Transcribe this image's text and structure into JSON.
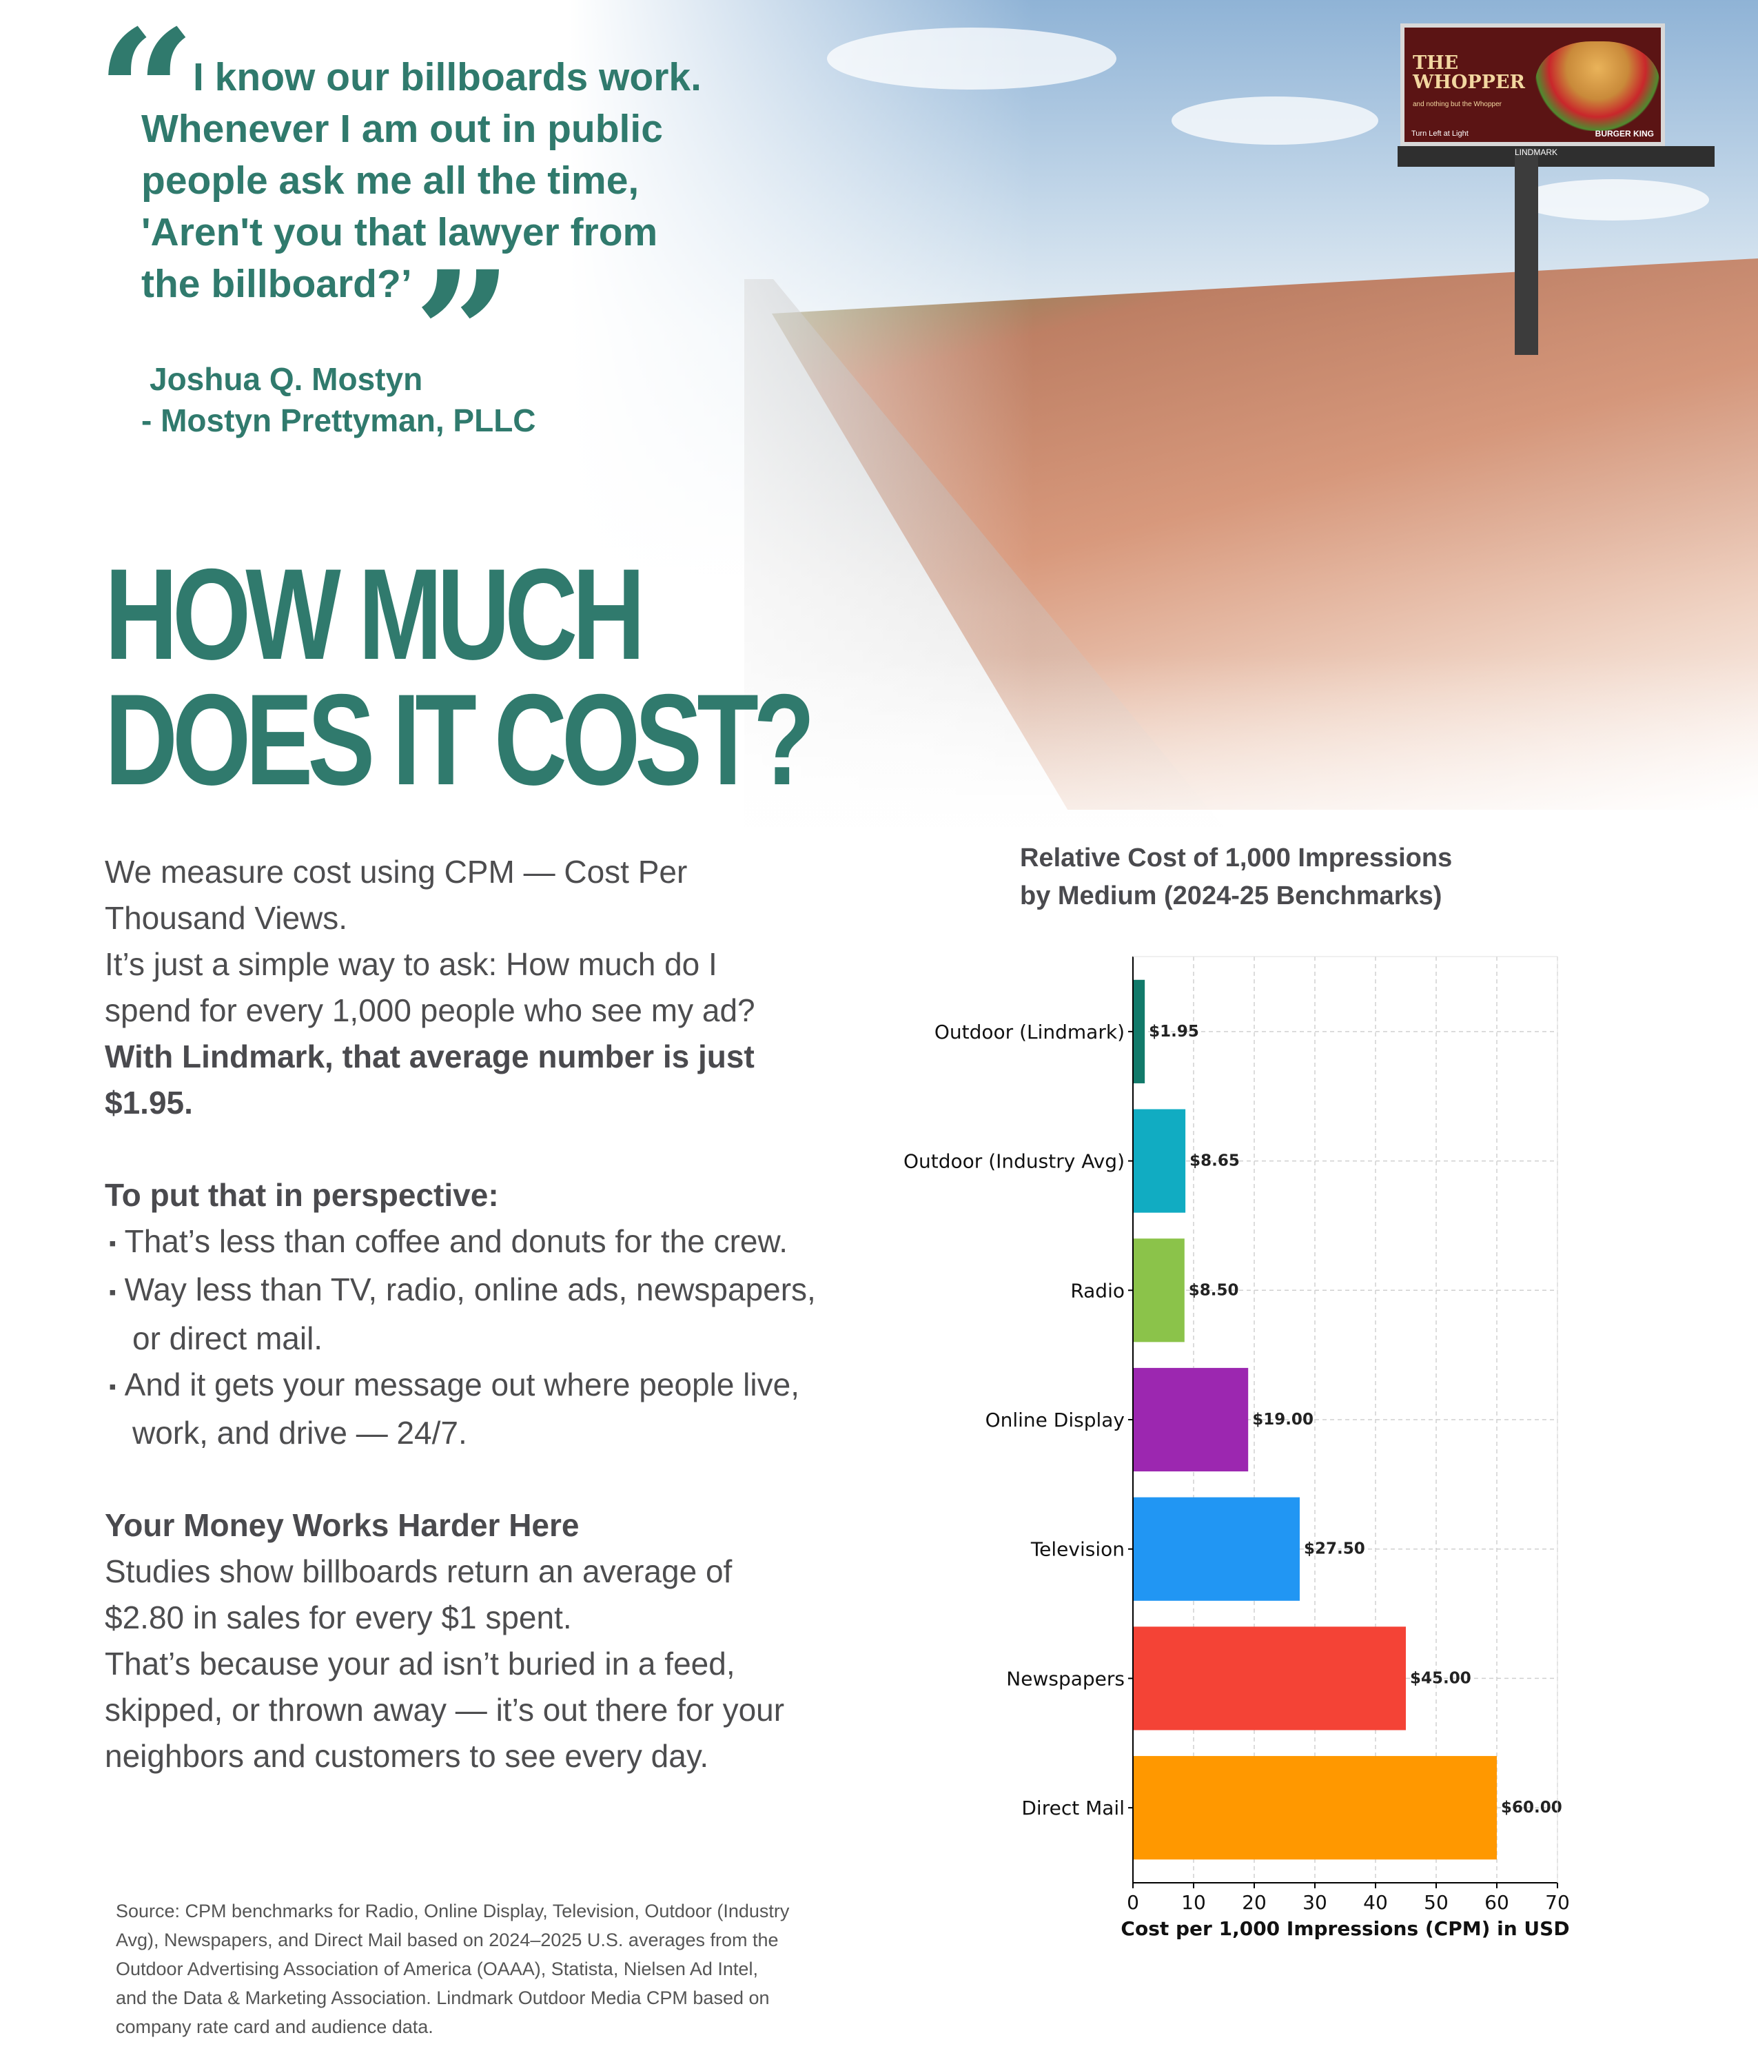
{
  "quote": {
    "lines": [
      "I know our billboards work.",
      "Whenever I am out in public",
      "people ask me all the time,",
      "'Aren't you that lawyer from",
      "the billboard?’"
    ],
    "author_name": "Joshua Q. Mostyn",
    "author_firm": "- Mostyn Prettyman, PLLC"
  },
  "billboard": {
    "title": "THE\nWHOPPER",
    "subtitle": "and nothing but the Whopper",
    "footer": "Turn Left at Light",
    "brand": "BURGER KING",
    "owner_tag": "LINDMARK"
  },
  "heading": [
    "HOW MUCH",
    "DOES IT COST?"
  ],
  "body": {
    "intro_lines": [
      "We measure cost using CPM — Cost Per",
      "Thousand Views.",
      "It’s just a simple way to ask: How much do I",
      "spend for every 1,000 people who see my ad?"
    ],
    "highlight_lines": [
      "With Lindmark, that average number is just",
      "$1.95."
    ],
    "perspective_heading": "To put that in perspective:",
    "bullet_mark": "▪",
    "bullets": [
      {
        "line1": "That’s less than coffee and donuts for the crew.",
        "line2": ""
      },
      {
        "line1": "Way less than TV, radio, online ads, newspapers,",
        "line2": "or direct mail."
      },
      {
        "line1": "And it gets your message out where people live,",
        "line2": "work, and drive — 24/7."
      }
    ],
    "money_heading": "Your Money Works Harder Here",
    "money_lines": [
      "Studies show billboards return an average of",
      "$2.80 in sales for every $1 spent.",
      "That’s because your ad isn’t buried in a feed,",
      "skipped, or thrown away — it’s out there for your",
      "neighbors and customers to see every day."
    ]
  },
  "source_lines": [
    "Source: CPM benchmarks for Radio, Online Display, Television, Outdoor (Industry",
    "Avg), Newspapers, and Direct Mail based on 2024–2025 U.S. averages from the",
    "Outdoor Advertising Association of America (OAAA), Statista, Nielsen Ad Intel,",
    "and the Data & Marketing Association. Lindmark Outdoor Media CPM based on",
    "company rate card and audience data."
  ],
  "colors": {
    "brand_green": "#307a6d",
    "body_text": "#4d4d4f"
  },
  "chart_data": {
    "type": "bar",
    "orientation": "horizontal",
    "title_lines": [
      "Relative Cost of 1,000 Impressions",
      "by Medium (2024-25 Benchmarks)"
    ],
    "categories": [
      "Outdoor (Lindmark)",
      "Outdoor (Industry Avg)",
      "Radio",
      "Online Display",
      "Television",
      "Newspapers",
      "Direct Mail"
    ],
    "values": [
      1.95,
      8.65,
      8.5,
      19.0,
      27.5,
      45.0,
      60.0
    ],
    "value_labels": [
      "$1.95",
      "$8.65",
      "$8.50",
      "$19.00",
      "$27.50",
      "$45.00",
      "$60.00"
    ],
    "bar_colors": [
      "#127a6a",
      "#11acc2",
      "#8bc34a",
      "#9c27b0",
      "#2196f3",
      "#f44336",
      "#ff9800"
    ],
    "xlabel": "Cost per 1,000 Impressions (CPM) in USD",
    "ylabel": "",
    "xlim": [
      0,
      70
    ],
    "xticks": [
      0,
      10,
      20,
      30,
      40,
      50,
      60,
      70
    ],
    "grid": true
  }
}
